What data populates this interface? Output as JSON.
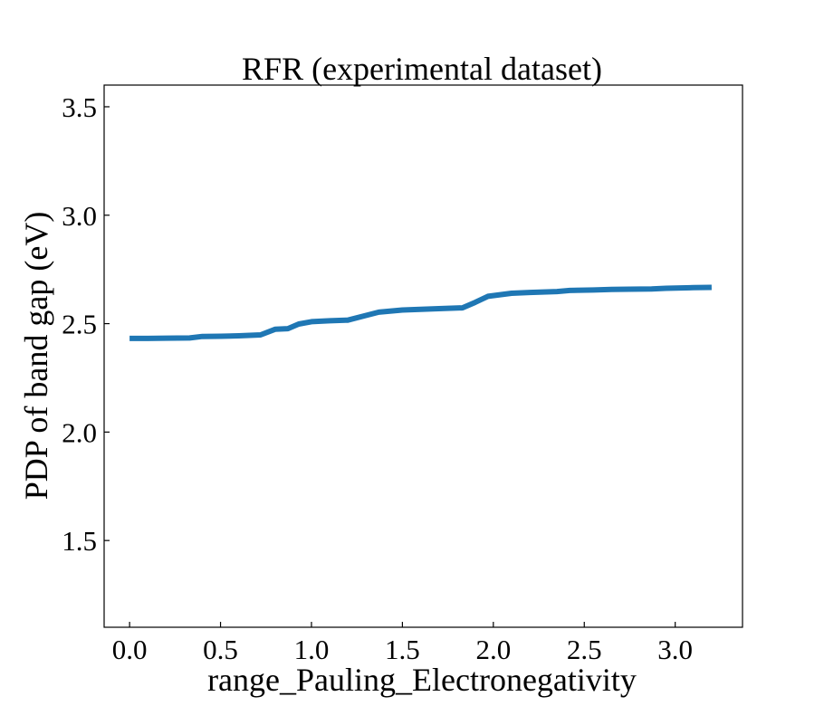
{
  "chart_data": {
    "type": "line",
    "title": "RFR (experimental dataset)",
    "xlabel": "range_Pauling_Electronegativity",
    "ylabel": "PDP of band gap (eV)",
    "xlim": [
      -0.14,
      3.37
    ],
    "ylim": [
      1.1,
      3.6
    ],
    "xticks": [
      0.0,
      0.5,
      1.0,
      1.5,
      2.0,
      2.5,
      3.0
    ],
    "xtick_labels": [
      "0.0",
      "0.5",
      "1.0",
      "1.5",
      "2.0",
      "2.5",
      "3.0"
    ],
    "yticks": [
      1.5,
      2.0,
      2.5,
      3.0,
      3.5
    ],
    "ytick_labels": [
      "1.5",
      "2.0",
      "2.5",
      "3.0",
      "3.5"
    ],
    "grid": false,
    "legend": "none",
    "series": [
      {
        "color": "#1f77b4",
        "x": [
          0.0,
          0.1,
          0.2,
          0.33,
          0.4,
          0.5,
          0.6,
          0.72,
          0.8,
          0.87,
          0.93,
          1.0,
          1.1,
          1.2,
          1.3,
          1.37,
          1.5,
          1.6,
          1.7,
          1.83,
          1.9,
          1.97,
          2.1,
          2.2,
          2.35,
          2.42,
          2.55,
          2.65,
          2.75,
          2.87,
          2.95,
          3.1,
          3.2
        ],
        "y": [
          2.432,
          2.432,
          2.433,
          2.434,
          2.441,
          2.442,
          2.444,
          2.448,
          2.474,
          2.477,
          2.498,
          2.509,
          2.513,
          2.516,
          2.538,
          2.553,
          2.563,
          2.566,
          2.569,
          2.573,
          2.598,
          2.626,
          2.64,
          2.644,
          2.648,
          2.653,
          2.655,
          2.658,
          2.659,
          2.66,
          2.663,
          2.666,
          2.667
        ]
      }
    ]
  }
}
